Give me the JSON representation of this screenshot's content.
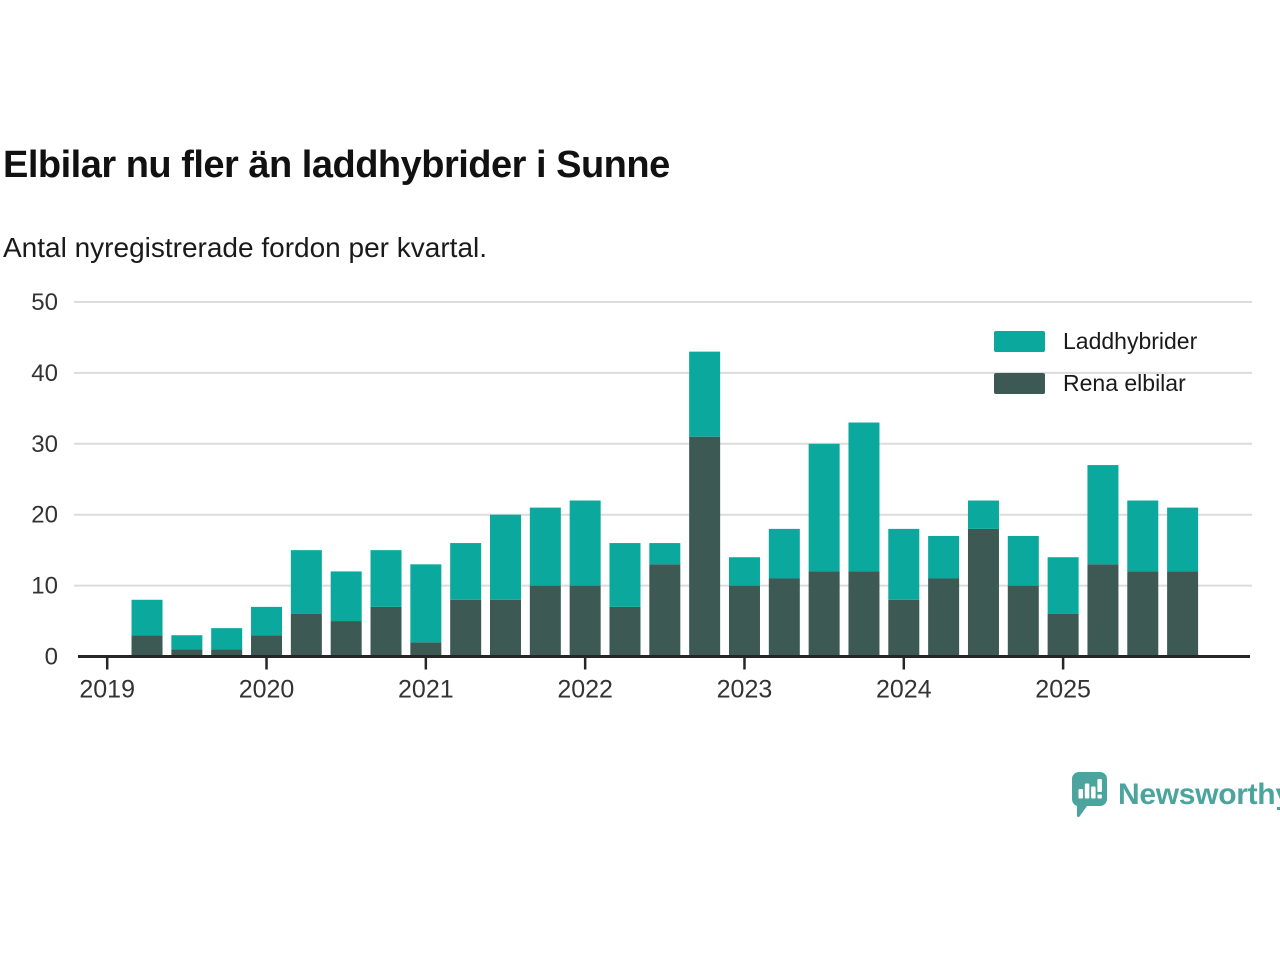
{
  "header": {
    "title": "Elbilar nu fler än laddhybrider i Sunne",
    "subtitle": "Antal nyregistrerade fordon per kvartal."
  },
  "legend": [
    {
      "label": "Laddhybrider",
      "color": "#0aa89d"
    },
    {
      "label": "Rena elbilar",
      "color": "#3c5a53"
    }
  ],
  "footer": {
    "brand": "Newsworthy",
    "brand_color": "#4ca49f"
  },
  "chart_data": {
    "type": "bar",
    "stacked": true,
    "title": "Elbilar nu fler än laddhybrider i Sunne",
    "subtitle": "Antal nyregistrerade fordon per kvartal.",
    "xlabel": "",
    "ylabel": "",
    "ylim": [
      0,
      50
    ],
    "yticks": [
      0,
      10,
      20,
      30,
      40,
      50
    ],
    "grid": "horizontal",
    "legend_position": "top-right",
    "year_ticks": [
      "2019",
      "2020",
      "2021",
      "2022",
      "2023",
      "2024",
      "2025"
    ],
    "categories": [
      "2019 Q2",
      "2019 Q3",
      "2019 Q4",
      "2020 Q1",
      "2020 Q2",
      "2020 Q3",
      "2020 Q4",
      "2021 Q1",
      "2021 Q2",
      "2021 Q3",
      "2021 Q4",
      "2022 Q1",
      "2022 Q2",
      "2022 Q3",
      "2022 Q4",
      "2023 Q1",
      "2023 Q2",
      "2023 Q3",
      "2023 Q4",
      "2024 Q1",
      "2024 Q2",
      "2024 Q3",
      "2024 Q4",
      "2025 Q1",
      "2025 Q2",
      "2025 Q3",
      "2025 Q4"
    ],
    "series": [
      {
        "name": "Rena elbilar",
        "color": "#3c5a53",
        "values": [
          3,
          1,
          1,
          3,
          6,
          5,
          7,
          2,
          8,
          8,
          10,
          10,
          7,
          13,
          31,
          10,
          11,
          12,
          12,
          8,
          11,
          18,
          10,
          6,
          13,
          12,
          12
        ]
      },
      {
        "name": "Laddhybrider",
        "color": "#0aa89d",
        "values": [
          5,
          2,
          3,
          4,
          9,
          7,
          8,
          11,
          8,
          12,
          11,
          12,
          9,
          3,
          12,
          4,
          7,
          18,
          21,
          10,
          6,
          4,
          7,
          8,
          14,
          10,
          9
        ]
      }
    ],
    "totals": [
      8,
      3,
      4,
      7,
      15,
      12,
      15,
      13,
      16,
      20,
      21,
      22,
      16,
      16,
      43,
      14,
      18,
      30,
      33,
      18,
      17,
      22,
      17,
      14,
      27,
      22,
      21
    ]
  },
  "style": {
    "grid_color": "#dcdcdc",
    "axis_color": "#262626",
    "tick_label_color": "#333333"
  }
}
